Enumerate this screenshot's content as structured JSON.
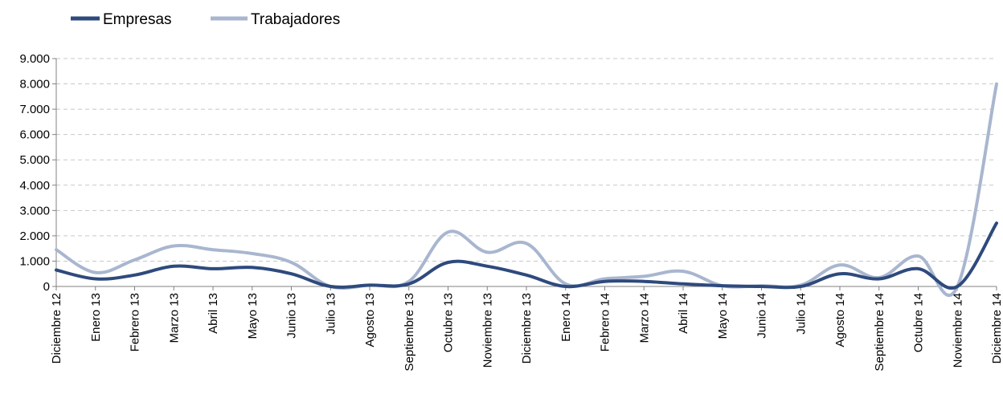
{
  "chart_data": {
    "type": "line",
    "categories": [
      "Diciembre 12",
      "Enero 13",
      "Febrero 13",
      "Marzo 13",
      "Abril 13",
      "Mayo 13",
      "Junio 13",
      "Julio 13",
      "Agosto 13",
      "Septiembre 13",
      "Octubre 13",
      "Noviembre 13",
      "Diciembre 13",
      "Enero 14",
      "Febrero 14",
      "Marzo 14",
      "Abril 14",
      "Mayo 14",
      "Junio 14",
      "Julio 14",
      "Agosto 14",
      "Septiembre 14",
      "Octubre 14",
      "Noviembre 14",
      "Diciembre 14"
    ],
    "series": [
      {
        "name": "Empresas",
        "color": "#2e4a7d",
        "values": [
          650,
          300,
          450,
          800,
          700,
          750,
          500,
          0,
          50,
          100,
          950,
          800,
          450,
          0,
          200,
          200,
          100,
          30,
          0,
          0,
          500,
          300,
          700,
          0,
          2500
        ]
      },
      {
        "name": "Trabajadores",
        "color": "#a9b6cf",
        "values": [
          1450,
          550,
          1050,
          1600,
          1450,
          1300,
          950,
          0,
          50,
          200,
          2150,
          1350,
          1700,
          100,
          300,
          400,
          600,
          30,
          30,
          50,
          850,
          350,
          1200,
          0,
          8000
        ]
      }
    ],
    "yticks": [
      "0",
      "1.000",
      "2.000",
      "3.000",
      "4.000",
      "5.000",
      "6.000",
      "7.000",
      "8.000",
      "9.000"
    ],
    "ylim": [
      0,
      9000
    ],
    "ystep": 1000,
    "grid": true,
    "legend_position": "top-left",
    "title": "",
    "xlabel": "",
    "ylabel": ""
  }
}
